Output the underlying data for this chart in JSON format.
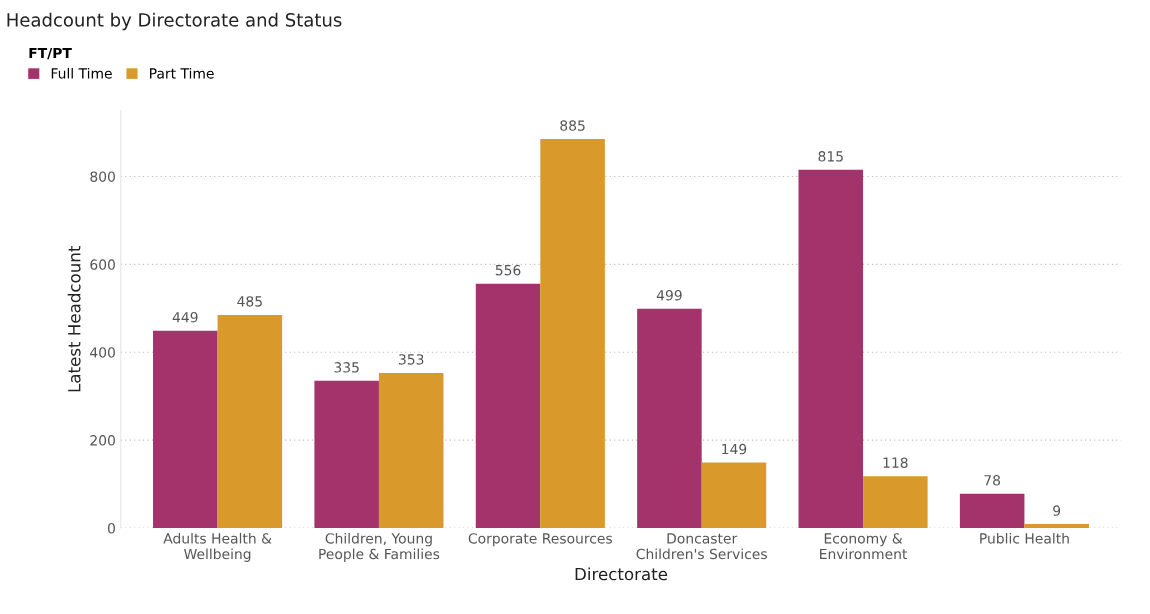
{
  "chart_data": {
    "type": "bar",
    "title": "Headcount by Directorate and Status",
    "xlabel": "Directorate",
    "ylabel": "Latest Headcount",
    "legend_title": "FT/PT",
    "categories": [
      "Adults Health & Wellbeing",
      "Children, Young People & Families",
      "Corporate Resources",
      "Doncaster Children's Services",
      "Economy & Environment",
      "Public Health"
    ],
    "series": [
      {
        "name": "Full Time",
        "color": "#a5336b",
        "values": [
          449,
          335,
          556,
          499,
          815,
          78
        ]
      },
      {
        "name": "Part Time",
        "color": "#d99a2b",
        "values": [
          485,
          353,
          885,
          149,
          118,
          9
        ]
      }
    ],
    "ylim": [
      0,
      950
    ],
    "yticks": [
      0,
      200,
      400,
      600,
      800
    ],
    "grid": "y",
    "legend": "top left",
    "data_labels": true
  }
}
